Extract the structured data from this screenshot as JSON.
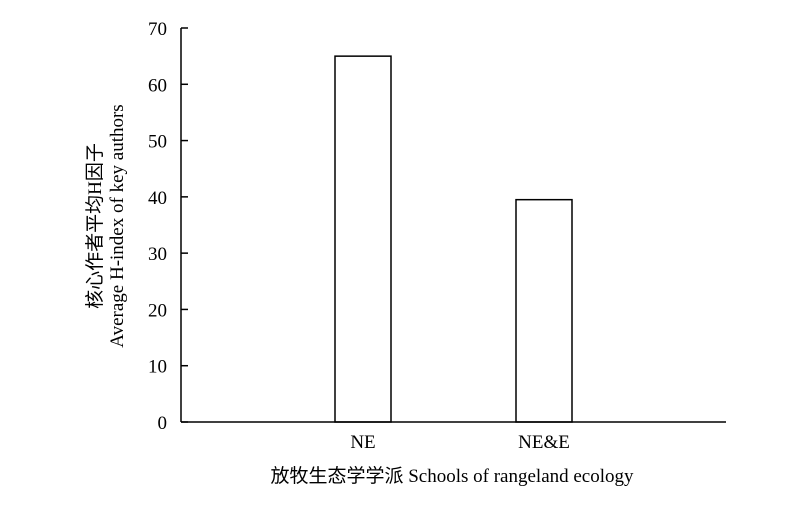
{
  "chart_data": {
    "type": "bar",
    "categories": [
      "NE",
      "NE&E"
    ],
    "values": [
      65,
      39.5
    ],
    "ylim": [
      0,
      70
    ],
    "yticks": [
      0,
      10,
      20,
      30,
      40,
      50,
      60,
      70
    ],
    "ylabel_cn": "核心作者平均H因子",
    "ylabel_en": "Average H-index of key authors",
    "xlabel": "放牧生态学学派 Schools of rangeland ecology",
    "grid": false,
    "legend": "none",
    "colors": {
      "bar_fill": "#ffffff",
      "bar_stroke": "#000000",
      "axis": "#000000"
    }
  }
}
